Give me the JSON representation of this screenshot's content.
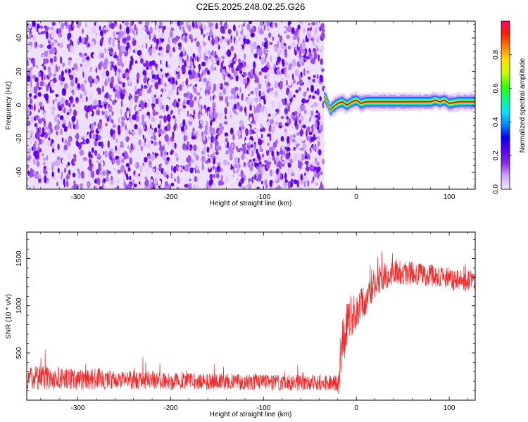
{
  "figure": {
    "title": "C2E5.2025.248.02.25.G26"
  },
  "chart_data": [
    {
      "type": "heatmap",
      "xlabel": "Height of straight line (km)",
      "ylabel": "Frequency (Hz)",
      "xlim": [
        -355,
        128
      ],
      "ylim": [
        -50,
        50
      ],
      "xticks": [
        -300,
        -200,
        -100,
        0,
        100
      ],
      "yticks": [
        -40,
        -20,
        0,
        20,
        40
      ],
      "grid": false,
      "noise_region_x": [
        -355,
        -35
      ],
      "signal_region_x": [
        -35,
        128
      ],
      "signal_track": {
        "x": [
          -35,
          -32,
          -30,
          -28,
          -25,
          -20,
          -15,
          -10,
          -5,
          0,
          5,
          10,
          20,
          40,
          60,
          80,
          85,
          90,
          95,
          100,
          110,
          128
        ],
        "frequency": [
          5,
          3,
          0,
          -3,
          -1,
          1,
          2,
          0,
          2,
          3,
          1,
          2,
          2,
          2,
          2,
          2,
          3,
          2,
          3,
          1,
          2,
          2
        ]
      },
      "colorbar": {
        "label": "Normalized spectral amplitude",
        "range": [
          0,
          1
        ],
        "ticks": [
          0.0,
          0.2,
          0.4,
          0.6,
          0.8
        ],
        "colors": [
          "#f4e6ff",
          "#cfa8ff",
          "#8a2be2",
          "#5a00ff",
          "#0000ff",
          "#0088ff",
          "#00e5ff",
          "#00ff80",
          "#33ff00",
          "#c8ff00",
          "#ffe000",
          "#ff8000",
          "#ff2000",
          "#ff0066"
        ]
      }
    },
    {
      "type": "line",
      "xlabel": "Height of straight line (km)",
      "ylabel": "SNR (10 * v/v)",
      "xlim": [
        -355,
        128
      ],
      "ylim": [
        0,
        1780
      ],
      "xticks": [
        -300,
        -200,
        -100,
        0,
        100
      ],
      "yticks": [
        500,
        1000,
        1500
      ],
      "grid": false,
      "color": "#ee2b2b",
      "envelope": {
        "x": [
          -355,
          -340,
          -320,
          -300,
          -280,
          -260,
          -240,
          -220,
          -200,
          -180,
          -160,
          -140,
          -120,
          -100,
          -80,
          -60,
          -40,
          -25,
          -20,
          -17,
          -15,
          -12,
          -10,
          -7,
          -5,
          0,
          5,
          10,
          15,
          20,
          25,
          30,
          35,
          40,
          45,
          50,
          55,
          60,
          65,
          70,
          75,
          80,
          85,
          90,
          95,
          100,
          105,
          110,
          115,
          120,
          128
        ],
        "mean": [
          230,
          240,
          230,
          220,
          225,
          215,
          210,
          210,
          200,
          200,
          195,
          195,
          190,
          190,
          185,
          185,
          190,
          190,
          150,
          350,
          650,
          700,
          800,
          850,
          900,
          950,
          1000,
          1050,
          1150,
          1230,
          1280,
          1310,
          1340,
          1360,
          1360,
          1350,
          1340,
          1350,
          1340,
          1330,
          1330,
          1320,
          1310,
          1300,
          1300,
          1290,
          1280,
          1270,
          1260,
          1260,
          1280
        ],
        "spread": [
          130,
          130,
          120,
          110,
          110,
          100,
          100,
          95,
          95,
          90,
          90,
          90,
          85,
          85,
          85,
          85,
          85,
          80,
          100,
          200,
          250,
          250,
          250,
          230,
          220,
          200,
          180,
          160,
          150,
          150,
          140,
          140,
          140,
          140,
          140,
          130,
          130,
          120,
          120,
          120,
          120,
          120,
          120,
          120,
          120,
          120,
          120,
          110,
          110,
          110,
          110
        ]
      }
    }
  ]
}
